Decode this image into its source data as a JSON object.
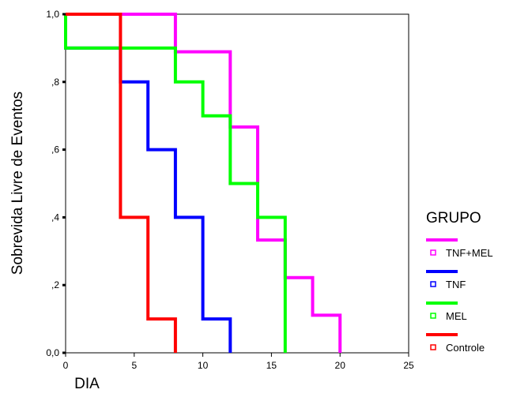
{
  "chart_data": {
    "type": "line",
    "step": true,
    "xlabel": "DIA",
    "ylabel": "Sobrevida Livre de Eventos",
    "xlim": [
      0,
      25
    ],
    "ylim": [
      0,
      1
    ],
    "x_ticks": [
      0,
      5,
      10,
      15,
      20,
      25
    ],
    "x_tick_labels": [
      "0",
      "5",
      "10",
      "15",
      "20",
      "25"
    ],
    "y_ticks": [
      0,
      0.2,
      0.4,
      0.6,
      0.8,
      1.0
    ],
    "y_tick_labels": [
      "0,0",
      ",2",
      ",4",
      ",6",
      ",8",
      "1,0"
    ],
    "grid": false,
    "legend": {
      "title": "GRUPO",
      "position": "right"
    },
    "series": [
      {
        "name": "TNF+MEL",
        "color": "#ff00ff",
        "points": [
          [
            0,
            1.0
          ],
          [
            8,
            1.0
          ],
          [
            8,
            0.889
          ],
          [
            12,
            0.889
          ],
          [
            12,
            0.667
          ],
          [
            14,
            0.667
          ],
          [
            14,
            0.333
          ],
          [
            16,
            0.333
          ],
          [
            16,
            0.222
          ],
          [
            18,
            0.222
          ],
          [
            18,
            0.111
          ],
          [
            20,
            0.111
          ],
          [
            20,
            0.0
          ]
        ]
      },
      {
        "name": "TNF",
        "color": "#0000ff",
        "points": [
          [
            0,
            1.0
          ],
          [
            0,
            0.9
          ],
          [
            4,
            0.9
          ],
          [
            4,
            0.8
          ],
          [
            6,
            0.8
          ],
          [
            6,
            0.6
          ],
          [
            8,
            0.6
          ],
          [
            8,
            0.4
          ],
          [
            10,
            0.4
          ],
          [
            10,
            0.1
          ],
          [
            12,
            0.1
          ],
          [
            12,
            0.0
          ]
        ]
      },
      {
        "name": "MEL",
        "color": "#00ff00",
        "points": [
          [
            0,
            1.0
          ],
          [
            0,
            0.9
          ],
          [
            8,
            0.9
          ],
          [
            8,
            0.8
          ],
          [
            10,
            0.8
          ],
          [
            10,
            0.7
          ],
          [
            12,
            0.7
          ],
          [
            12,
            0.5
          ],
          [
            14,
            0.5
          ],
          [
            14,
            0.4
          ],
          [
            16,
            0.4
          ],
          [
            16,
            0.0
          ]
        ]
      },
      {
        "name": "Controle",
        "color": "#ff0000",
        "points": [
          [
            0,
            1.0
          ],
          [
            4,
            1.0
          ],
          [
            4,
            0.4
          ],
          [
            6,
            0.4
          ],
          [
            6,
            0.1
          ],
          [
            8,
            0.1
          ],
          [
            8,
            0.0
          ]
        ]
      }
    ]
  }
}
